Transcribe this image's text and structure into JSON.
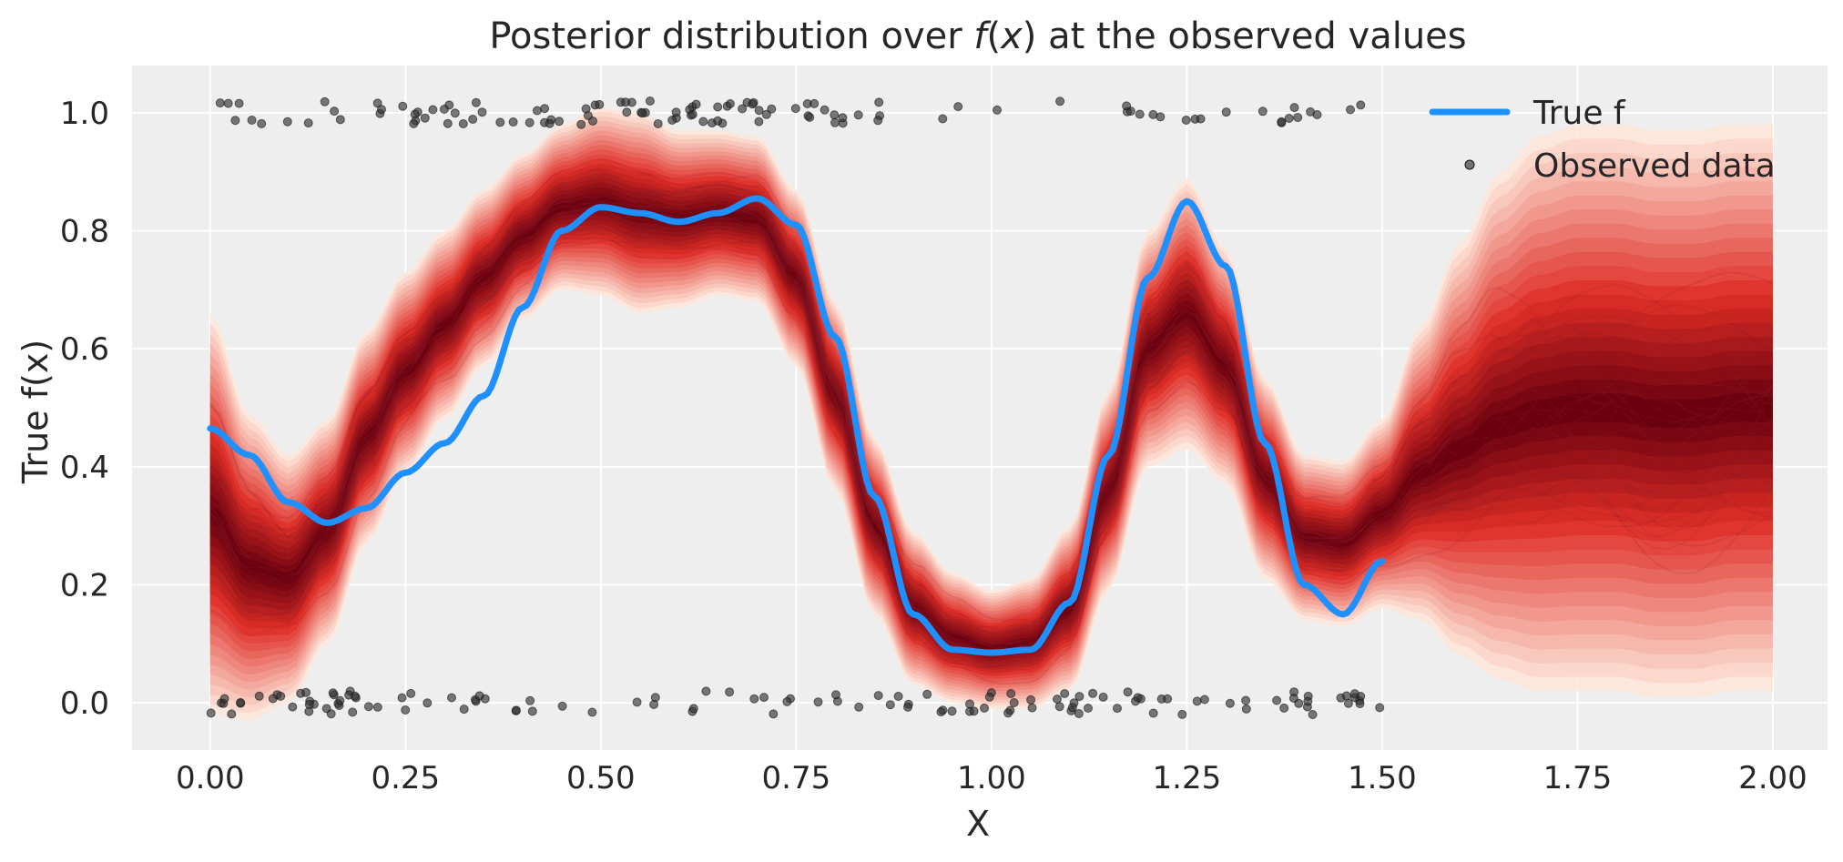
{
  "chart_data": {
    "type": "line",
    "title_parts": {
      "before": "Posterior distribution over ",
      "italic_f": "f",
      "paren_open": "(",
      "italic_x": "x",
      "after": ") at the observed values"
    },
    "xlabel": "X",
    "ylabel": "True f(x)",
    "xlim": [
      -0.1,
      2.07
    ],
    "ylim": [
      -0.08,
      1.08
    ],
    "grid": true,
    "background": "#eeeeee",
    "x_ticks": [
      "0.00",
      "0.25",
      "0.50",
      "0.75",
      "1.00",
      "1.25",
      "1.50",
      "1.75",
      "2.00"
    ],
    "y_ticks": [
      "0.0",
      "0.2",
      "0.4",
      "0.6",
      "0.8",
      "1.0"
    ],
    "legend_position": "top-right",
    "legend": [
      {
        "label": "True f",
        "marker": "line",
        "color": "#1e90ff"
      },
      {
        "label": "Observed data",
        "marker": "dot",
        "color": "#333333"
      }
    ],
    "colors": {
      "true_f": "#1e90ff",
      "observed": "#333333",
      "posterior_dark": "#67000d",
      "posterior_light": "#fee5d9"
    },
    "true_f": {
      "x": [
        0.0,
        0.05,
        0.1,
        0.15,
        0.2,
        0.25,
        0.3,
        0.35,
        0.4,
        0.45,
        0.5,
        0.55,
        0.6,
        0.65,
        0.7,
        0.75,
        0.8,
        0.85,
        0.9,
        0.95,
        1.0,
        1.05,
        1.1,
        1.15,
        1.2,
        1.25,
        1.3,
        1.35,
        1.4,
        1.45,
        1.5
      ],
      "y": [
        0.465,
        0.42,
        0.34,
        0.305,
        0.33,
        0.39,
        0.44,
        0.52,
        0.67,
        0.8,
        0.84,
        0.83,
        0.815,
        0.83,
        0.855,
        0.81,
        0.62,
        0.35,
        0.15,
        0.09,
        0.085,
        0.09,
        0.17,
        0.42,
        0.72,
        0.85,
        0.74,
        0.44,
        0.2,
        0.15,
        0.24
      ]
    },
    "posterior_median": {
      "x": [
        0.0,
        0.05,
        0.1,
        0.15,
        0.2,
        0.25,
        0.3,
        0.35,
        0.4,
        0.45,
        0.5,
        0.55,
        0.6,
        0.65,
        0.7,
        0.75,
        0.8,
        0.85,
        0.9,
        0.95,
        1.0,
        1.05,
        1.1,
        1.15,
        1.2,
        1.25,
        1.3,
        1.35,
        1.4,
        1.45,
        1.5,
        1.55,
        1.6,
        1.65,
        1.7,
        1.75,
        1.8,
        1.85,
        1.9,
        1.95,
        2.0
      ],
      "y": [
        0.32,
        0.23,
        0.21,
        0.29,
        0.45,
        0.56,
        0.64,
        0.72,
        0.79,
        0.84,
        0.85,
        0.83,
        0.82,
        0.83,
        0.82,
        0.72,
        0.52,
        0.3,
        0.16,
        0.11,
        0.09,
        0.1,
        0.16,
        0.36,
        0.6,
        0.66,
        0.57,
        0.38,
        0.28,
        0.27,
        0.32,
        0.39,
        0.43,
        0.47,
        0.49,
        0.5,
        0.5,
        0.49,
        0.49,
        0.5,
        0.5
      ]
    },
    "posterior_halfwidth": [
      0.34,
      0.26,
      0.21,
      0.19,
      0.18,
      0.17,
      0.16,
      0.15,
      0.14,
      0.14,
      0.16,
      0.17,
      0.15,
      0.14,
      0.14,
      0.15,
      0.16,
      0.15,
      0.13,
      0.11,
      0.1,
      0.11,
      0.14,
      0.17,
      0.2,
      0.23,
      0.2,
      0.17,
      0.14,
      0.14,
      0.16,
      0.25,
      0.35,
      0.43,
      0.47,
      0.48,
      0.48,
      0.48,
      0.48,
      0.48,
      0.48
    ],
    "observed_data": {
      "y_values": [
        0,
        1
      ],
      "x_range_y0": [
        0.0,
        1.5
      ],
      "x_range_y1": [
        0.0,
        1.5
      ],
      "count_per_level": 200,
      "jitter": 0.02
    }
  }
}
